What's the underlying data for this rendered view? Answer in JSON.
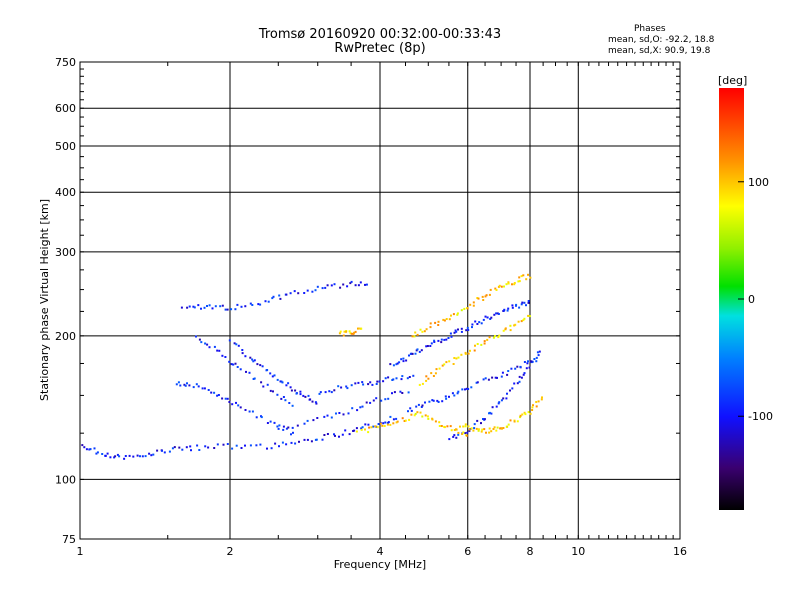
{
  "chart_data": {
    "type": "scatter",
    "title": "Tromsø 20160920 00:32:00-00:33:43",
    "subtitle": "RwPretec (8p)",
    "xlabel": "Frequency [MHz]",
    "ylabel": "Stationary phase Virtual Height [km]",
    "x_scale": "log",
    "y_scale": "log",
    "xlim": [
      1,
      16
    ],
    "ylim": [
      75,
      750
    ],
    "x_ticks": [
      1,
      2,
      4,
      6,
      8,
      10,
      16
    ],
    "y_ticks": [
      75,
      100,
      200,
      300,
      400,
      500,
      600,
      750
    ],
    "x_gridlines": [
      2,
      4,
      6,
      8,
      10
    ],
    "y_gridlines": [
      100,
      200,
      300,
      400,
      500,
      600
    ],
    "grid": true,
    "stats_title": "Phases",
    "stats_o": "mean, sd,O: -92.2, 18.8",
    "stats_x": "mean, sd,X:  90.9, 19.8",
    "colorbar": {
      "label": "[deg]",
      "range": [
        -180,
        180
      ],
      "ticks": [
        100,
        0,
        -100
      ],
      "placement": "right"
    },
    "series": [
      {
        "name": "O",
        "phase": -95,
        "traces": [
          {
            "x": [
              1.0,
              1.1,
              1.2,
              1.35,
              1.5,
              1.7,
              2.0,
              2.4,
              2.8,
              3.2,
              3.6,
              4.0,
              4.3
            ],
            "y": [
              118,
              114,
              112,
              113,
              116,
              117,
              118,
              118,
              121,
              124,
              128,
              132,
              136
            ]
          },
          {
            "x": [
              1.6,
              1.8,
              2.0,
              2.3,
              2.6,
              3.0,
              3.4,
              3.8
            ],
            "y": [
              232,
              231,
              229,
              236,
              245,
              252,
              257,
              260
            ]
          },
          {
            "x": [
              1.55,
              1.7,
              1.9,
              2.1,
              2.4,
              2.7
            ],
            "y": [
              160,
              158,
              150,
              142,
              132,
              124
            ]
          },
          {
            "x": [
              1.7,
              1.9,
              2.1,
              2.4,
              2.7
            ],
            "y": [
              200,
              185,
              170,
              155,
              142
            ]
          },
          {
            "x": [
              2.0,
              2.2,
              2.4,
              2.6,
              2.8,
              3.0
            ],
            "y": [
              195,
              180,
              168,
              158,
              150,
              145
            ]
          },
          {
            "x": [
              2.5,
              3.0,
              3.5,
              4.0,
              4.6
            ],
            "y": [
              128,
              134,
              140,
              148,
              155
            ]
          },
          {
            "x": [
              3.0,
              3.4,
              3.8,
              4.2,
              4.7
            ],
            "y": [
              152,
              157,
              160,
              163,
              165
            ]
          },
          {
            "x": [
              4.2,
              4.5,
              4.8,
              5.2,
              5.6,
              6.0,
              6.5,
              7.0,
              7.5,
              8.0
            ],
            "y": [
              175,
              180,
              188,
              196,
              203,
              210,
              218,
              226,
              232,
              238
            ]
          },
          {
            "x": [
              4.5,
              5.0,
              5.5,
              6.0,
              6.8,
              7.5,
              8.2
            ],
            "y": [
              140,
              145,
              150,
              157,
              165,
              172,
              180
            ]
          },
          {
            "x": [
              5.5,
              6.0,
              6.5,
              7.0,
              7.5,
              8.0,
              8.4
            ],
            "y": [
              122,
              128,
              136,
              146,
              160,
              175,
              188
            ]
          }
        ]
      },
      {
        "name": "X",
        "phase": 95,
        "traces": [
          {
            "x": [
              3.6,
              4.0,
              4.4,
              4.8,
              5.2,
              5.6,
              6.0
            ],
            "y": [
              126,
              130,
              134,
              138,
              132,
              128,
              124
            ]
          },
          {
            "x": [
              4.6,
              5.0,
              5.5,
              6.0,
              6.5,
              7.0,
              7.5,
              8.0
            ],
            "y": [
              200,
              210,
              220,
              232,
              245,
              255,
              262,
              270
            ]
          },
          {
            "x": [
              5.8,
              6.2,
              6.6,
              7.0,
              7.5,
              8.0,
              8.5
            ],
            "y": [
              130,
              128,
              127,
              129,
              134,
              140,
              150
            ]
          },
          {
            "x": [
              4.8,
              5.2,
              5.7,
              6.2,
              6.8,
              7.4,
              8.0
            ],
            "y": [
              160,
              170,
              180,
              190,
              200,
              212,
              225
            ]
          },
          {
            "x": [
              3.3,
              3.5,
              3.7
            ],
            "y": [
              203,
              205,
              207
            ]
          }
        ]
      }
    ]
  }
}
